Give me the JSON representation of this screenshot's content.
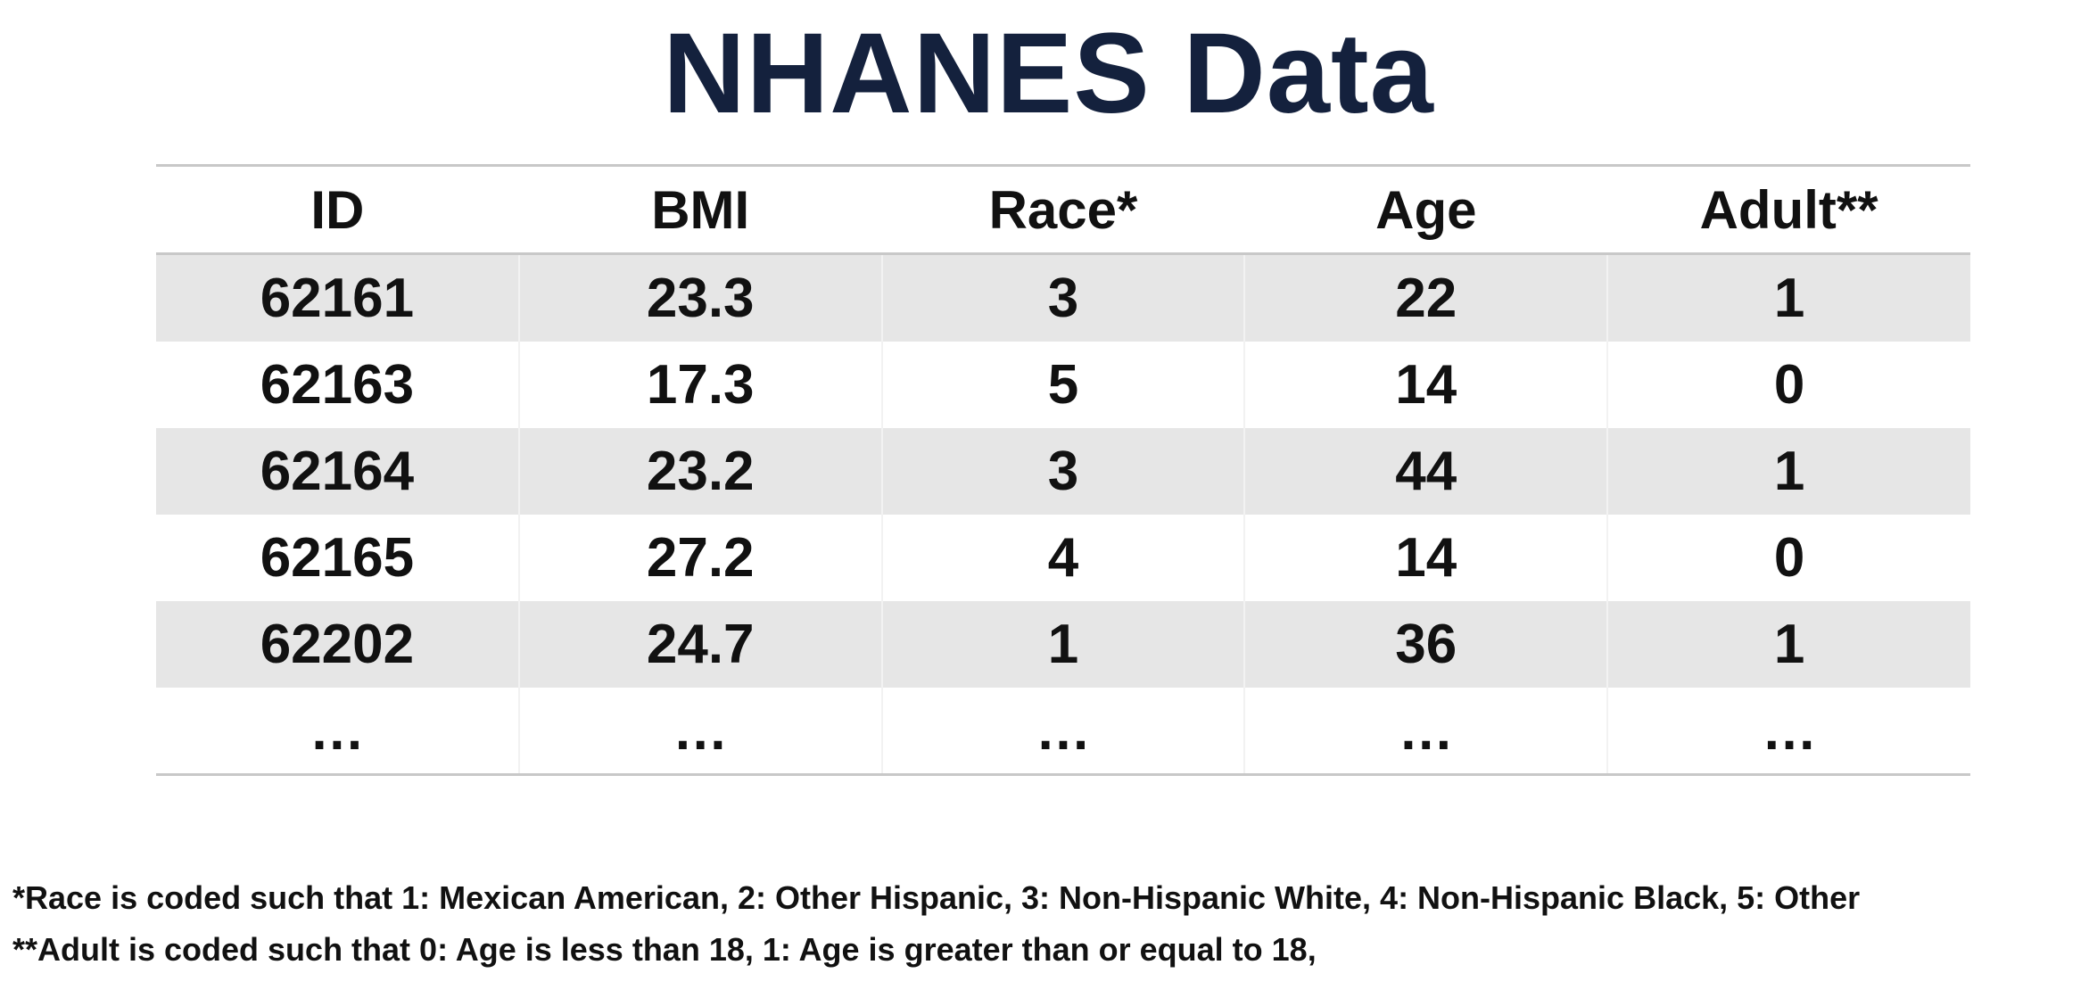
{
  "title": "NHANES Data",
  "table": {
    "headers": [
      "ID",
      "BMI",
      "Race*",
      "Age",
      "Adult**"
    ],
    "rows": [
      [
        "62161",
        "23.3",
        "3",
        "22",
        "1"
      ],
      [
        "62163",
        "17.3",
        "5",
        "14",
        "0"
      ],
      [
        "62164",
        "23.2",
        "3",
        "44",
        "1"
      ],
      [
        "62165",
        "27.2",
        "4",
        "14",
        "0"
      ],
      [
        "62202",
        "24.7",
        "1",
        "36",
        "1"
      ],
      [
        "…",
        "…",
        "…",
        "…",
        "…"
      ]
    ]
  },
  "footnotes": {
    "race": "*Race is coded such that 1: Mexican American, 2: Other Hispanic, 3: Non-Hispanic White, 4: Non-Hispanic Black, 5: Other",
    "adult": "**Adult is coded such that 0: Age is less than 18, 1: Age is greater than or equal to 18,"
  },
  "colors": {
    "title": "#14213d",
    "row_shade": "#e6e6e6",
    "rule": "#c8c8c8"
  }
}
